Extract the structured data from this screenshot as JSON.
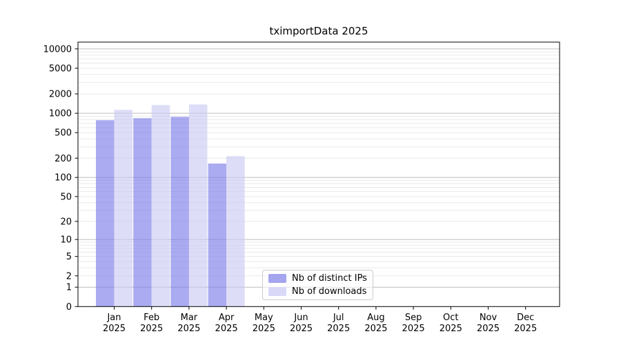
{
  "page": {
    "background": "#ffffff"
  },
  "chart_data": {
    "type": "bar",
    "title": "tximportData 2025",
    "categories": [
      "Jan",
      "Feb",
      "Mar",
      "Apr",
      "May",
      "Jun",
      "Jul",
      "Aug",
      "Sep",
      "Oct",
      "Nov",
      "Dec"
    ],
    "year_label": "2025",
    "series": [
      {
        "name": "Nb of distinct IPs",
        "legend_color": "#a4a4ef",
        "bar_color": "#7878e8",
        "bar_opacity": 0.62,
        "values": [
          780,
          840,
          880,
          165,
          null,
          null,
          null,
          null,
          null,
          null,
          null,
          null
        ]
      },
      {
        "name": "Nb of downloads",
        "legend_color": "#d9d9f7",
        "bar_color": "#c8c8f4",
        "bar_opacity": 0.62,
        "values": [
          1130,
          1340,
          1370,
          215,
          null,
          null,
          null,
          null,
          null,
          null,
          null,
          null
        ]
      }
    ],
    "y_ticks": [
      0,
      1,
      2,
      5,
      10,
      20,
      50,
      100,
      200,
      500,
      1000,
      2000,
      5000,
      10000
    ],
    "y_scale": "log1p",
    "ylim": [
      0,
      12600
    ],
    "xlabel": "",
    "ylabel": "",
    "grid": "horizontal only, major darker at powers of 10, light minors at 2-9 multiples",
    "grid_major_color": "#bdbdbd",
    "grid_minor_color": "#e9e9e9",
    "axis_color": "#000000",
    "legend_position": "inside bottom, right of center"
  }
}
